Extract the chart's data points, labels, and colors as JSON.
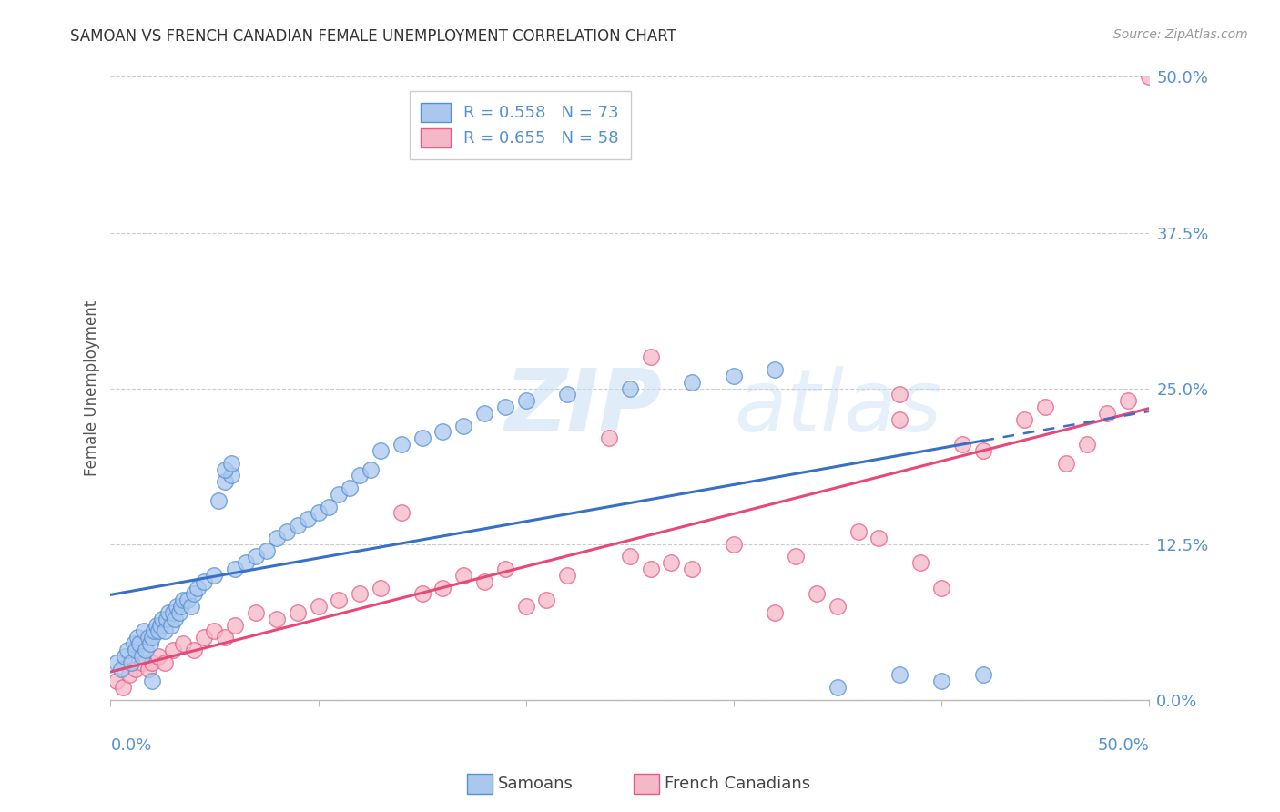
{
  "title": "SAMOAN VS FRENCH CANADIAN FEMALE UNEMPLOYMENT CORRELATION CHART",
  "source": "Source: ZipAtlas.com",
  "ylabel": "Female Unemployment",
  "ytick_values": [
    0,
    12.5,
    25.0,
    37.5,
    50.0
  ],
  "xtick_values": [
    0,
    10,
    20,
    30,
    40,
    50
  ],
  "xlim": [
    0,
    50
  ],
  "ylim": [
    0,
    50
  ],
  "samoans_color": "#aac8ee",
  "french_color": "#f5b8c8",
  "samoans_edge_color": "#5590d0",
  "french_edge_color": "#e85a85",
  "samoans_line_color": "#3870c8",
  "french_line_color": "#e84878",
  "tick_label_color": "#5590d0",
  "R_samoans": 0.558,
  "N_samoans": 73,
  "R_french": 0.655,
  "N_french": 58,
  "watermark_zip": "ZIP",
  "watermark_atlas": "atlas",
  "background_color": "#ffffff",
  "grid_color": "#cccccc",
  "title_color": "#333333",
  "source_color": "#999999",
  "ylabel_color": "#555555",
  "samoans_x": [
    0.3,
    0.5,
    0.7,
    0.8,
    1.0,
    1.1,
    1.2,
    1.3,
    1.4,
    1.5,
    1.6,
    1.7,
    1.8,
    1.9,
    2.0,
    2.1,
    2.2,
    2.3,
    2.4,
    2.5,
    2.6,
    2.7,
    2.8,
    2.9,
    3.0,
    3.1,
    3.2,
    3.3,
    3.4,
    3.5,
    3.7,
    3.9,
    4.0,
    4.2,
    4.5,
    5.0,
    5.2,
    5.5,
    5.8,
    6.0,
    6.5,
    7.0,
    7.5,
    8.0,
    8.5,
    9.0,
    9.5,
    10.0,
    10.5,
    11.0,
    11.5,
    12.0,
    12.5,
    13.0,
    14.0,
    15.0,
    16.0,
    17.0,
    18.0,
    19.0,
    5.5,
    5.8,
    20.0,
    22.0,
    25.0,
    28.0,
    30.0,
    32.0,
    35.0,
    38.0,
    40.0,
    42.0,
    2.0
  ],
  "samoans_y": [
    3.0,
    2.5,
    3.5,
    4.0,
    3.0,
    4.5,
    4.0,
    5.0,
    4.5,
    3.5,
    5.5,
    4.0,
    5.0,
    4.5,
    5.0,
    5.5,
    6.0,
    5.5,
    6.0,
    6.5,
    5.5,
    6.5,
    7.0,
    6.0,
    7.0,
    6.5,
    7.5,
    7.0,
    7.5,
    8.0,
    8.0,
    7.5,
    8.5,
    9.0,
    9.5,
    10.0,
    16.0,
    17.5,
    18.0,
    10.5,
    11.0,
    11.5,
    12.0,
    13.0,
    13.5,
    14.0,
    14.5,
    15.0,
    15.5,
    16.5,
    17.0,
    18.0,
    18.5,
    20.0,
    20.5,
    21.0,
    21.5,
    22.0,
    23.0,
    23.5,
    18.5,
    19.0,
    24.0,
    24.5,
    25.0,
    25.5,
    26.0,
    26.5,
    1.0,
    2.0,
    1.5,
    2.0,
    1.5
  ],
  "french_x": [
    0.3,
    0.6,
    0.9,
    1.2,
    1.5,
    1.8,
    2.0,
    2.3,
    2.6,
    3.0,
    3.5,
    4.0,
    4.5,
    5.0,
    5.5,
    6.0,
    7.0,
    8.0,
    9.0,
    10.0,
    11.0,
    12.0,
    13.0,
    14.0,
    15.0,
    16.0,
    17.0,
    18.0,
    19.0,
    20.0,
    21.0,
    22.0,
    24.0,
    25.0,
    26.0,
    27.0,
    28.0,
    30.0,
    32.0,
    33.0,
    34.0,
    35.0,
    36.0,
    37.0,
    38.0,
    39.0,
    40.0,
    41.0,
    42.0,
    44.0,
    45.0,
    46.0,
    47.0,
    48.0,
    49.0,
    50.0,
    26.0,
    38.0
  ],
  "french_y": [
    1.5,
    1.0,
    2.0,
    2.5,
    3.0,
    2.5,
    3.0,
    3.5,
    3.0,
    4.0,
    4.5,
    4.0,
    5.0,
    5.5,
    5.0,
    6.0,
    7.0,
    6.5,
    7.0,
    7.5,
    8.0,
    8.5,
    9.0,
    15.0,
    8.5,
    9.0,
    10.0,
    9.5,
    10.5,
    7.5,
    8.0,
    10.0,
    21.0,
    11.5,
    10.5,
    11.0,
    10.5,
    12.5,
    7.0,
    11.5,
    8.5,
    7.5,
    13.5,
    13.0,
    22.5,
    11.0,
    9.0,
    20.5,
    20.0,
    22.5,
    23.5,
    19.0,
    20.5,
    23.0,
    24.0,
    50.0,
    27.5,
    24.5
  ]
}
